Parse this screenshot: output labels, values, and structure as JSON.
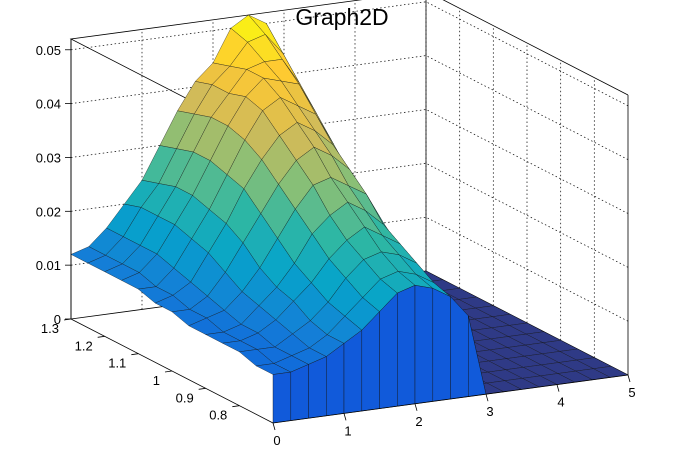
{
  "chart_data": {
    "type": "surface",
    "title": "Graph2D",
    "xlabel": "",
    "ylabel": "",
    "zlabel": "",
    "x_range": [
      0,
      5
    ],
    "y_range": [
      0.7,
      1.3
    ],
    "z_range": [
      0,
      0.052
    ],
    "x_ticks": [
      "0",
      "1",
      "2",
      "3",
      "4",
      "5"
    ],
    "y_ticks": [
      "0.8",
      "0.9",
      "1",
      "1.1",
      "1.2",
      "1.3"
    ],
    "z_ticks": [
      "0",
      "0.01",
      "0.02",
      "0.03",
      "0.04",
      "0.05"
    ],
    "grid": true,
    "palette": "kBird",
    "palette_colors": [
      "#352a87",
      "#0f5cdd",
      "#1481d6",
      "#06a4ca",
      "#2eb7a4",
      "#87bf77",
      "#d1bb59",
      "#fec832",
      "#f9fb0e"
    ],
    "floor_color": "#2f3a86",
    "x_grid": [
      0,
      0.25,
      0.5,
      0.75,
      1,
      1.25,
      1.5,
      1.75,
      2,
      2.25,
      2.5,
      2.75,
      3,
      3.25,
      3.5,
      3.75,
      4,
      4.25,
      4.5,
      4.75,
      5
    ],
    "y_grid": [
      1.3,
      1.25,
      1.2,
      1.15,
      1.1,
      1.05,
      1.0,
      0.95,
      0.9,
      0.85,
      0.8,
      0.75,
      0.7
    ],
    "z_rows": [
      [
        0.012,
        0.013,
        0.016,
        0.02,
        0.024,
        0.03,
        0.036,
        0.041,
        0.044,
        0.05,
        0.052,
        0.05,
        0,
        0,
        0,
        0,
        0,
        0,
        0,
        0,
        0
      ],
      [
        0.012,
        0.013,
        0.016,
        0.021,
        0.025,
        0.031,
        0.037,
        0.042,
        0.045,
        0.049,
        0.05,
        0.046,
        0,
        0,
        0,
        0,
        0,
        0,
        0,
        0,
        0
      ],
      [
        0.012,
        0.013,
        0.016,
        0.021,
        0.026,
        0.032,
        0.038,
        0.042,
        0.046,
        0.047,
        0.047,
        0.042,
        0,
        0,
        0,
        0,
        0,
        0,
        0,
        0,
        0
      ],
      [
        0.012,
        0.013,
        0.016,
        0.021,
        0.026,
        0.032,
        0.038,
        0.043,
        0.046,
        0.045,
        0.044,
        0.038,
        0,
        0,
        0,
        0,
        0,
        0,
        0,
        0,
        0
      ],
      [
        0.012,
        0.012,
        0.015,
        0.02,
        0.025,
        0.031,
        0.037,
        0.042,
        0.044,
        0.042,
        0.04,
        0.034,
        0,
        0,
        0,
        0,
        0,
        0,
        0,
        0,
        0
      ],
      [
        0.011,
        0.012,
        0.014,
        0.019,
        0.024,
        0.03,
        0.035,
        0.039,
        0.041,
        0.039,
        0.036,
        0.03,
        0,
        0,
        0,
        0,
        0,
        0,
        0,
        0,
        0
      ],
      [
        0.011,
        0.011,
        0.013,
        0.017,
        0.022,
        0.027,
        0.032,
        0.036,
        0.038,
        0.036,
        0.033,
        0.027,
        0,
        0,
        0,
        0,
        0,
        0,
        0,
        0,
        0
      ],
      [
        0.01,
        0.011,
        0.012,
        0.015,
        0.019,
        0.024,
        0.029,
        0.033,
        0.034,
        0.032,
        0.03,
        0.024,
        0,
        0,
        0,
        0,
        0,
        0,
        0,
        0,
        0
      ],
      [
        0.01,
        0.01,
        0.011,
        0.014,
        0.017,
        0.021,
        0.026,
        0.029,
        0.031,
        0.029,
        0.026,
        0.021,
        0,
        0,
        0,
        0,
        0,
        0,
        0,
        0,
        0
      ],
      [
        0.01,
        0.01,
        0.011,
        0.013,
        0.016,
        0.019,
        0.023,
        0.026,
        0.028,
        0.026,
        0.024,
        0.019,
        0,
        0,
        0,
        0,
        0,
        0,
        0,
        0,
        0
      ],
      [
        0.01,
        0.01,
        0.01,
        0.012,
        0.014,
        0.017,
        0.021,
        0.024,
        0.025,
        0.024,
        0.022,
        0.017,
        0,
        0,
        0,
        0,
        0,
        0,
        0,
        0,
        0
      ],
      [
        0.009,
        0.009,
        0.01,
        0.011,
        0.013,
        0.016,
        0.019,
        0.022,
        0.023,
        0.022,
        0.02,
        0.016,
        0,
        0,
        0,
        0,
        0,
        0,
        0,
        0,
        0
      ],
      [
        0.009,
        0.009,
        0.01,
        0.011,
        0.013,
        0.015,
        0.018,
        0.021,
        0.022,
        0.021,
        0.019,
        0.015,
        0,
        0,
        0,
        0,
        0,
        0,
        0,
        0,
        0
      ]
    ]
  }
}
